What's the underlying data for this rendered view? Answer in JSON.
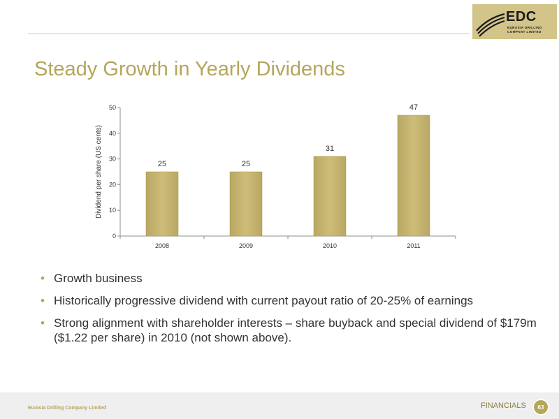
{
  "header": {
    "logo": {
      "text": "EDC",
      "subtitle_line1": "EURASIA DRILLING",
      "subtitle_line2": "COMPANY LIMITED",
      "color": "#d3c489"
    },
    "title": "Steady Growth in Yearly Dividends"
  },
  "chart_data": {
    "type": "bar",
    "categories": [
      "2008",
      "2009",
      "2010",
      "2011"
    ],
    "values": [
      25,
      25,
      31,
      47
    ],
    "data_labels": [
      "25",
      "25",
      "31",
      "47"
    ],
    "ylabel": "Dividend per share (US cents)",
    "xlabel": "",
    "ylim": [
      0,
      50
    ],
    "yticks": [
      0,
      10,
      20,
      30,
      40,
      50
    ],
    "grid": false,
    "bar_color": "#cdbd7a"
  },
  "bullets": [
    "Growth business",
    "Historically progressive dividend with current payout ratio of 20-25% of earnings",
    "Strong alignment with shareholder interests – share buyback and special dividend of $179m ($1.22 per share) in 2010 (not shown above)."
  ],
  "footer": {
    "company": "Eurasia Drilling Company Limited",
    "section": "FINANCIALS",
    "page_number": "63"
  },
  "colors": {
    "accent": "#b5a65b",
    "footer_bg": "#efefef"
  }
}
